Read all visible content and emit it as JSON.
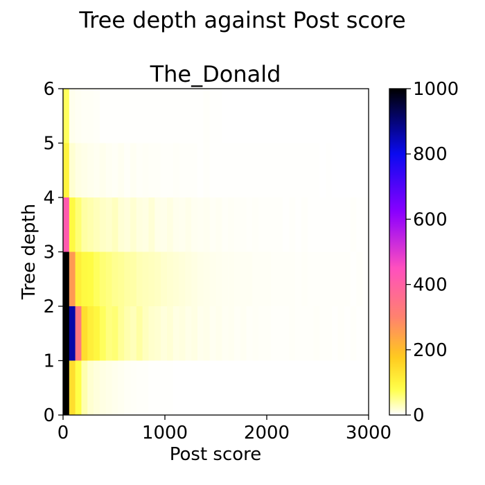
{
  "figure": {
    "suptitle": "Tree depth against Post score"
  },
  "chart_data": {
    "type": "heatmap",
    "title": "The_Donald",
    "xlabel": "Post score",
    "ylabel": "Tree depth",
    "xlim": [
      0,
      3000
    ],
    "ylim": [
      0,
      6
    ],
    "xticks": [
      0,
      1000,
      2000,
      3000
    ],
    "yticks": [
      0,
      1,
      2,
      3,
      4,
      5,
      6
    ],
    "xtick_labels": [
      "0",
      "1000",
      "2000",
      "3000"
    ],
    "ytick_labels": [
      "0",
      "1",
      "2",
      "3",
      "4",
      "5",
      "6"
    ],
    "bin_width": 60,
    "x_bin_starts": [
      0,
      60,
      120,
      180,
      240,
      300,
      360,
      420,
      480,
      540,
      600,
      660,
      720,
      780,
      840,
      900,
      960,
      1020,
      1080,
      1140,
      1200,
      1260,
      1320,
      1380,
      1440,
      1500,
      1560,
      1620,
      1680,
      1740,
      1800,
      1860,
      1920,
      1980,
      2040,
      2100,
      2160,
      2220,
      2280,
      2340,
      2400,
      2460,
      2520,
      2580,
      2640,
      2700,
      2760,
      2820,
      2880,
      2940
    ],
    "y_bins": [
      [
        0,
        1
      ],
      [
        1,
        2
      ],
      [
        2,
        3
      ],
      [
        3,
        4
      ],
      [
        4,
        5
      ],
      [
        5,
        6
      ]
    ],
    "counts": [
      [
        1000,
        140,
        80,
        35,
        20,
        15,
        12,
        10,
        8,
        6,
        4,
        3,
        2,
        2,
        1,
        1,
        1,
        1,
        0,
        0,
        0,
        0,
        0,
        0,
        0,
        0,
        0,
        0,
        0,
        0,
        0,
        0,
        0,
        0,
        0,
        0,
        0,
        0,
        0,
        0,
        0,
        0,
        0,
        0,
        0,
        0,
        0,
        0,
        0,
        0
      ],
      [
        1000,
        860,
        330,
        140,
        110,
        95,
        70,
        55,
        60,
        45,
        35,
        30,
        40,
        28,
        22,
        20,
        15,
        18,
        12,
        14,
        10,
        12,
        8,
        9,
        6,
        8,
        5,
        6,
        4,
        5,
        3,
        4,
        3,
        3,
        2,
        2,
        2,
        3,
        2,
        2,
        2,
        3,
        2,
        2,
        1,
        2,
        1,
        2,
        1,
        1
      ],
      [
        1000,
        260,
        110,
        90,
        85,
        70,
        60,
        55,
        48,
        45,
        40,
        38,
        32,
        30,
        28,
        26,
        22,
        20,
        18,
        16,
        14,
        12,
        10,
        9,
        8,
        7,
        6,
        6,
        5,
        5,
        5,
        4,
        4,
        4,
        3,
        3,
        3,
        3,
        2,
        3,
        2,
        2,
        2,
        2,
        2,
        2,
        2,
        1,
        2,
        1
      ],
      [
        420,
        90,
        60,
        40,
        35,
        30,
        25,
        22,
        28,
        18,
        15,
        20,
        14,
        12,
        18,
        10,
        9,
        12,
        8,
        7,
        9,
        6,
        5,
        6,
        4,
        5,
        3,
        4,
        3,
        3,
        2,
        3,
        2,
        2,
        2,
        2,
        1,
        2,
        1,
        2,
        1,
        1,
        1,
        1,
        1,
        1,
        1,
        2,
        1,
        1
      ],
      [
        100,
        20,
        12,
        10,
        8,
        6,
        8,
        5,
        4,
        6,
        3,
        5,
        3,
        4,
        3,
        3,
        2,
        2,
        3,
        2,
        2,
        2,
        1,
        2,
        1,
        1,
        1,
        1,
        1,
        1,
        1,
        1,
        1,
        1,
        1,
        1,
        1,
        1,
        1,
        1,
        1,
        1,
        0,
        1,
        0,
        0,
        0,
        0,
        0,
        0
      ],
      [
        70,
        8,
        5,
        4,
        4,
        3,
        1,
        1,
        1,
        1,
        1,
        1,
        1,
        1,
        1,
        1,
        1,
        1,
        1,
        1,
        1,
        1,
        1,
        2,
        1,
        1,
        0,
        0,
        0,
        0,
        0,
        0,
        0,
        0,
        0,
        0,
        0,
        0,
        0,
        0,
        0,
        0,
        0,
        0,
        0,
        0,
        0,
        0,
        0,
        0
      ]
    ],
    "colorbar": {
      "colormap": "gnuplot2_r",
      "vmin": 0,
      "vmax": 1000,
      "ticks": [
        0,
        200,
        400,
        600,
        800,
        1000
      ],
      "tick_labels": [
        "0",
        "200",
        "400",
        "600",
        "800",
        "1000"
      ]
    },
    "grid": false,
    "legend": "none"
  }
}
